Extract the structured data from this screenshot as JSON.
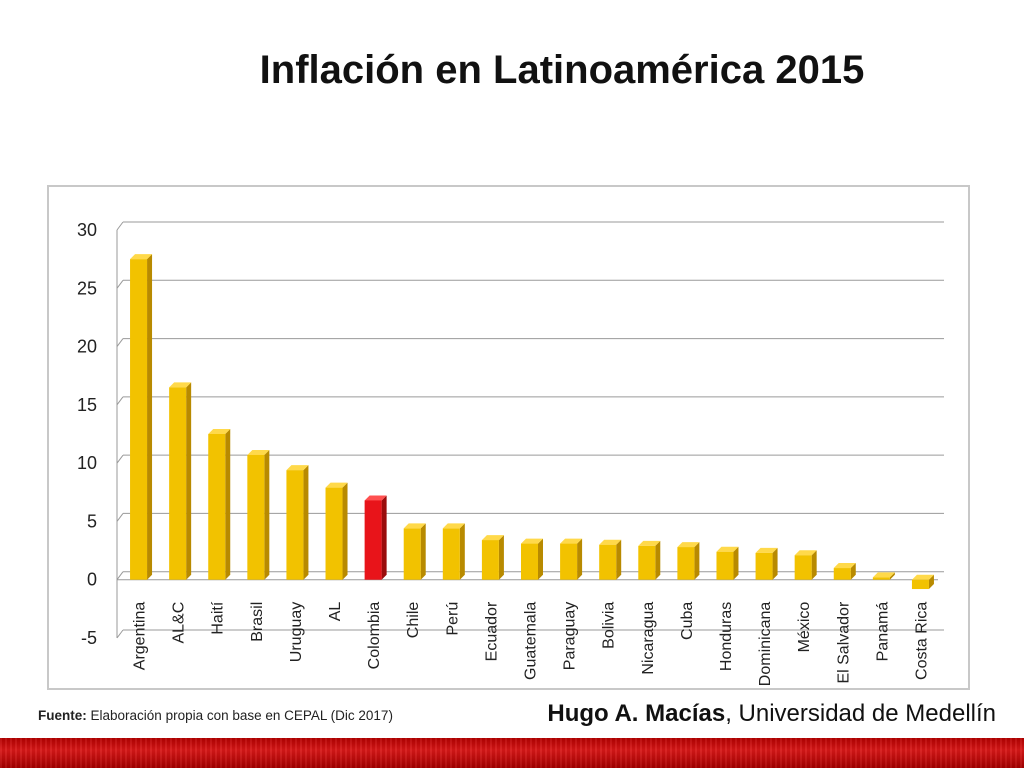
{
  "slide": {
    "title": "Inflación en Latinoamérica 2015",
    "source_label": "Fuente:",
    "source_text": "Elaboración propia con base en CEPAL (Dic 2017)",
    "author_name": "Hugo A. Macías",
    "author_affiliation": ", Universidad de Medellín"
  },
  "colors": {
    "bar": "#f2c200",
    "bar_side": "#b88a00",
    "bar_top": "#ffd94a",
    "highlight": "#e8141a",
    "highlight_side": "#9a0c0c",
    "highlight_top": "#ff5050",
    "brand_bar": "#c40000"
  },
  "chart_data": {
    "type": "bar",
    "title": "",
    "xlabel": "",
    "ylabel": "",
    "ylim": [
      -5,
      30
    ],
    "yticks": [
      -5,
      0,
      5,
      10,
      15,
      20,
      25,
      30
    ],
    "grid": true,
    "highlighted_category": "Colombia",
    "categories": [
      "Argentina",
      "AL&C",
      "Haití",
      "Brasil",
      "Uruguay",
      "AL",
      "Colombia",
      "Chile",
      "Perú",
      "Ecuador",
      "Guatemala",
      "Paraguay",
      "Bolivia",
      "Nicaragua",
      "Cuba",
      "Honduras",
      "Dominicana",
      "México",
      "El Salvador",
      "Panamá",
      "Costa Rica"
    ],
    "values": [
      27.5,
      16.5,
      12.5,
      10.7,
      9.4,
      7.9,
      6.8,
      4.4,
      4.4,
      3.4,
      3.1,
      3.1,
      3.0,
      2.9,
      2.8,
      2.4,
      2.3,
      2.1,
      1.0,
      0.2,
      -0.8
    ]
  }
}
